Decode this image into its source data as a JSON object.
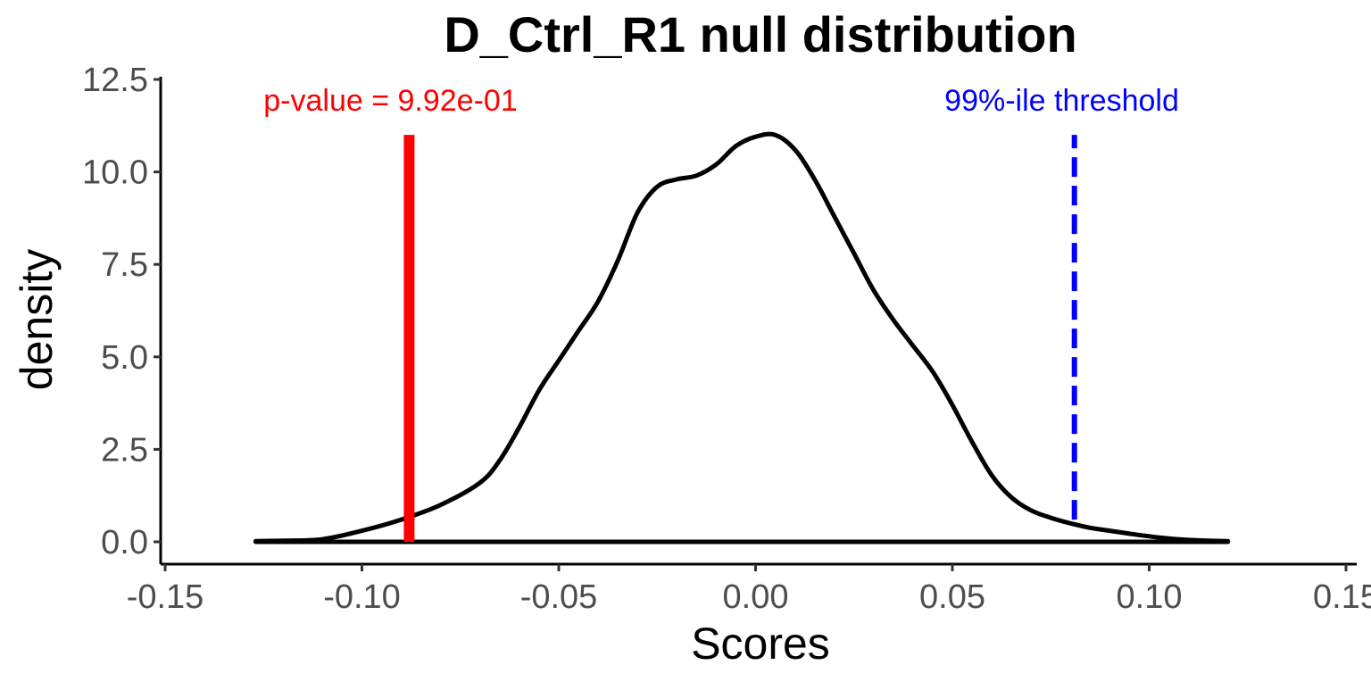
{
  "chart_data": {
    "type": "line",
    "title": "D_Ctrl_R1 null distribution",
    "xlabel": "Scores",
    "ylabel": "density",
    "xlim": [
      -0.15,
      0.15
    ],
    "ylim": [
      0,
      12.5
    ],
    "xticks": [
      -0.15,
      -0.1,
      -0.05,
      0.0,
      0.05,
      0.1,
      0.15
    ],
    "xtick_labels": [
      "-0.15",
      "-0.10",
      "-0.05",
      "0.00",
      "0.05",
      "0.10",
      "0.15"
    ],
    "yticks": [
      0,
      2.5,
      5,
      7.5,
      10,
      12.5
    ],
    "ytick_labels": [
      "0.0",
      "2.5",
      "5.0",
      "7.5",
      "10.0",
      "12.5"
    ],
    "grid": false,
    "series": [
      {
        "color": "#000000",
        "x": [
          -0.127,
          -0.12,
          -0.11,
          -0.1,
          -0.09,
          -0.08,
          -0.07,
          -0.065,
          -0.06,
          -0.055,
          -0.05,
          -0.045,
          -0.04,
          -0.035,
          -0.03,
          -0.025,
          -0.02,
          -0.015,
          -0.01,
          -0.005,
          0.0,
          0.005,
          0.01,
          0.015,
          0.02,
          0.025,
          0.03,
          0.035,
          0.04,
          0.045,
          0.05,
          0.055,
          0.06,
          0.065,
          0.07,
          0.075,
          0.08,
          0.085,
          0.09,
          0.095,
          0.1,
          0.105,
          0.11,
          0.115,
          0.12
        ],
        "y": [
          0.02,
          0.03,
          0.07,
          0.3,
          0.6,
          1.0,
          1.6,
          2.2,
          3.1,
          4.1,
          4.9,
          5.7,
          6.5,
          7.6,
          8.9,
          9.6,
          9.8,
          9.9,
          10.2,
          10.7,
          10.95,
          11.0,
          10.6,
          9.8,
          8.8,
          7.8,
          6.8,
          6.0,
          5.3,
          4.6,
          3.7,
          2.7,
          1.8,
          1.2,
          0.85,
          0.65,
          0.5,
          0.38,
          0.3,
          0.22,
          0.15,
          0.09,
          0.05,
          0.03,
          0.02
        ]
      }
    ],
    "vlines": [
      {
        "x": -0.088,
        "ymin": 0,
        "ymax": 11.0,
        "color": "#ff0000",
        "style": "solid"
      },
      {
        "x": 0.081,
        "ymin": 0.6,
        "ymax": 11.0,
        "color": "#0000ff",
        "style": "dashed"
      }
    ],
    "baseline": {
      "y": 0,
      "xmin": -0.127,
      "xmax": 0.12
    },
    "annotations": [
      {
        "text": "p-value = 9.92e-01",
        "x": -0.125,
        "y": 11.95,
        "color": "#ff0000",
        "anchor": "start"
      },
      {
        "text": "99%-ile threshold",
        "x": 0.048,
        "y": 11.95,
        "color": "#0000ff",
        "anchor": "start"
      }
    ]
  }
}
